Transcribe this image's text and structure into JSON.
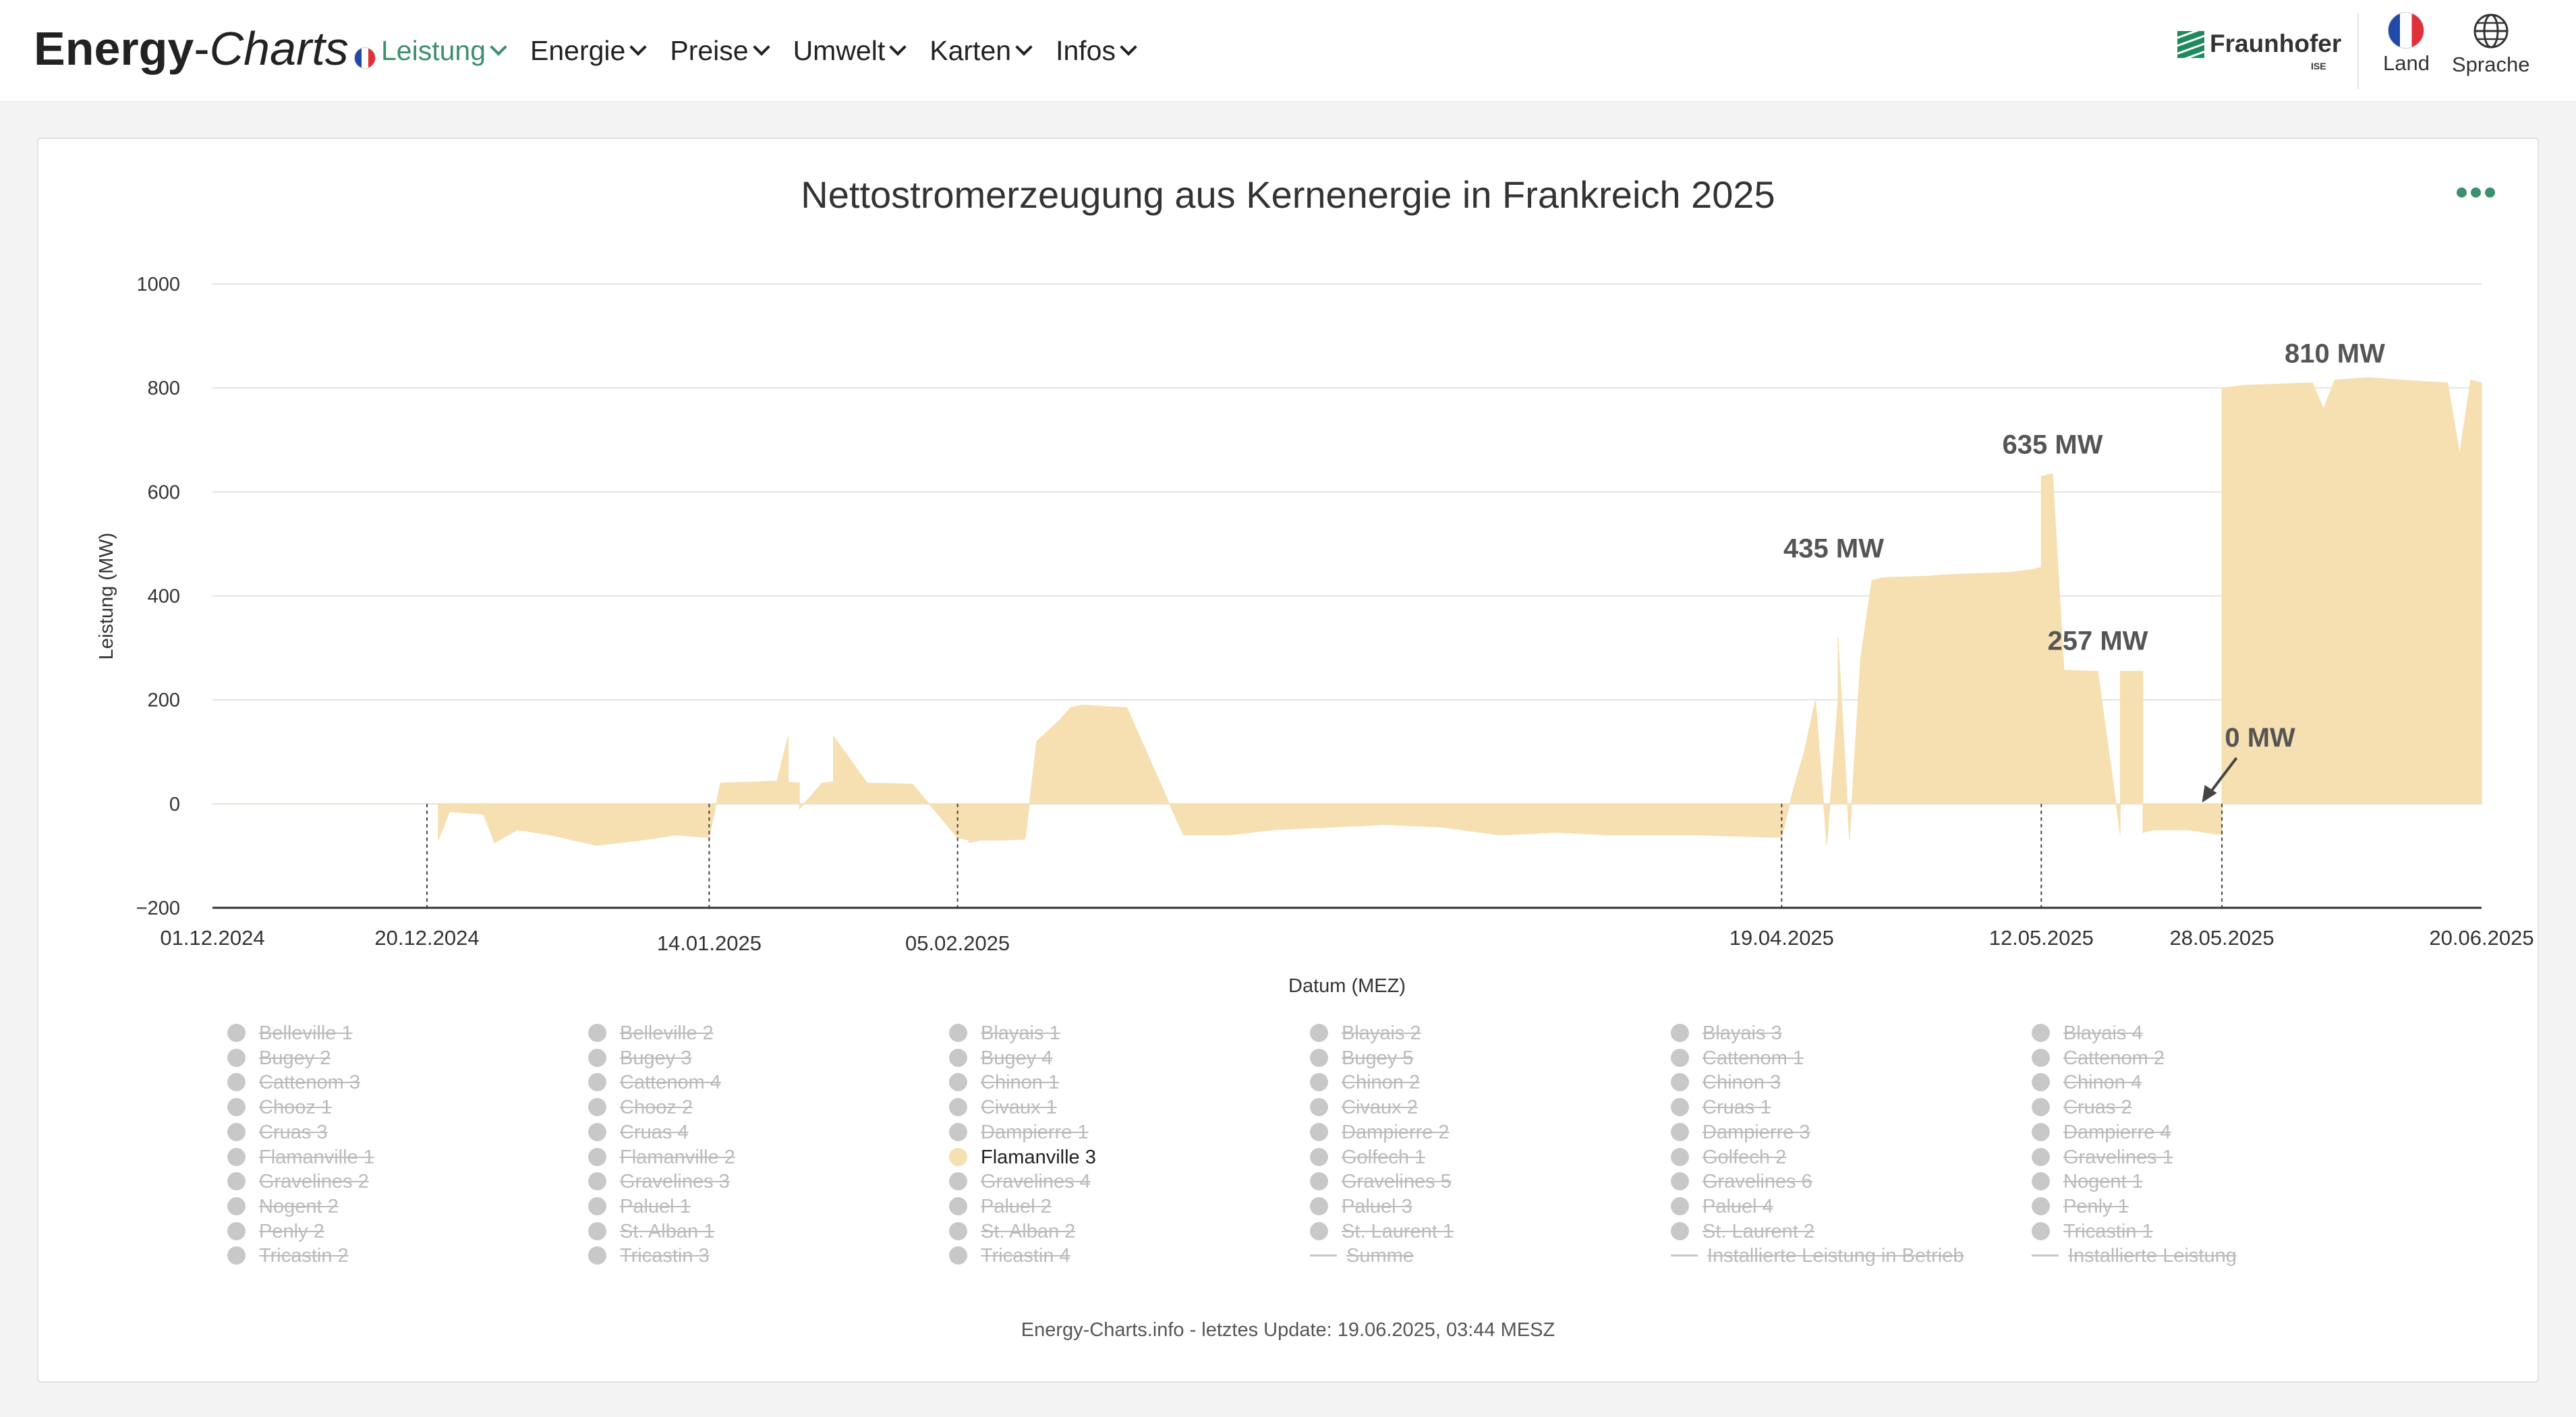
{
  "header": {
    "logo_part1": "Energy",
    "logo_dash": "-",
    "logo_part2": "Charts",
    "nav": [
      {
        "label": "Leistung",
        "active": true
      },
      {
        "label": "Energie",
        "active": false
      },
      {
        "label": "Preise",
        "active": false
      },
      {
        "label": "Umwelt",
        "active": false
      },
      {
        "label": "Karten",
        "active": false
      },
      {
        "label": "Infos",
        "active": false
      }
    ],
    "fraunhofer": "Fraunhofer",
    "fraunhofer_sub": "ISE",
    "land_label": "Land",
    "sprache_label": "Sprache",
    "accent_color": "#3d8f6e"
  },
  "chart_data": {
    "type": "area",
    "title": "Nettostromerzeugung aus Kernenergie in Frankreich 2025",
    "ylabel": "Leistung (MW)",
    "xlabel": "Datum (MEZ)",
    "ylim": [
      -200,
      1000
    ],
    "yticks": [
      -200,
      0,
      200,
      400,
      600,
      800,
      1000
    ],
    "xlim": [
      "2024-12-01",
      "2025-06-20"
    ],
    "x_tick_labels": [
      "01.12.2024",
      "20.12.2024",
      "14.01.2025",
      "05.02.2025",
      "19.04.2025",
      "12.05.2025",
      "28.05.2025",
      "20.06.2025"
    ],
    "marker_dates": [
      "2024-12-20",
      "2025-01-14",
      "2025-02-05",
      "2025-04-19",
      "2025-05-12",
      "2025-05-28"
    ],
    "grid": true,
    "series": [
      {
        "name": "Flamanville 3",
        "color": "#f6dfb0",
        "x": [
          "2024-12-01",
          "2024-12-21",
          "2024-12-21",
          "2024-12-22",
          "2024-12-25",
          "2024-12-26",
          "2024-12-28",
          "2024-12-31",
          "2025-01-04",
          "2025-01-08",
          "2025-01-11",
          "2025-01-14",
          "2025-01-15",
          "2025-01-18",
          "2025-01-20",
          "2025-01-21",
          "2025-01-21",
          "2025-01-22",
          "2025-01-22",
          "2025-01-24",
          "2025-01-25",
          "2025-01-25",
          "2025-01-28",
          "2025-02-01",
          "2025-02-05",
          "2025-02-06",
          "2025-02-06",
          "2025-02-07",
          "2025-02-08",
          "2025-02-09",
          "2025-02-11",
          "2025-02-12",
          "2025-02-14",
          "2025-02-15",
          "2025-02-16",
          "2025-02-20",
          "2025-02-25",
          "2025-03-01",
          "2025-03-05",
          "2025-03-10",
          "2025-03-15",
          "2025-03-20",
          "2025-03-25",
          "2025-03-30",
          "2025-04-04",
          "2025-04-08",
          "2025-04-12",
          "2025-04-19",
          "2025-04-20",
          "2025-04-21",
          "2025-04-22",
          "2025-04-23",
          "2025-04-24",
          "2025-04-24",
          "2025-04-25",
          "2025-04-26",
          "2025-04-27",
          "2025-04-28",
          "2025-05-02",
          "2025-05-03",
          "2025-05-05",
          "2025-05-09",
          "2025-05-11",
          "2025-05-12",
          "2025-05-12",
          "2025-05-13",
          "2025-05-14",
          "2025-05-14",
          "2025-05-17",
          "2025-05-19",
          "2025-05-19",
          "2025-05-21",
          "2025-05-21",
          "2025-05-22",
          "2025-05-25",
          "2025-05-28",
          "2025-05-28",
          "2025-05-30",
          "2025-06-05",
          "2025-06-06",
          "2025-06-07",
          "2025-06-10",
          "2025-06-13",
          "2025-06-15",
          "2025-06-17",
          "2025-06-18",
          "2025-06-18",
          "2025-06-19",
          "2025-06-19",
          "2025-06-20"
        ],
        "y": [
          0,
          0,
          -70,
          -15,
          -20,
          -75,
          -50,
          -60,
          -80,
          -70,
          -60,
          -65,
          40,
          42,
          44,
          130,
          42,
          40,
          -10,
          40,
          42,
          130,
          40,
          38,
          -65,
          -70,
          -75,
          -70,
          -70,
          -70,
          -68,
          120,
          160,
          185,
          190,
          185,
          -60,
          -60,
          -50,
          -45,
          -40,
          -45,
          -60,
          -55,
          -60,
          -60,
          -60,
          -65,
          25,
          100,
          200,
          -80,
          200,
          320,
          -70,
          280,
          430,
          435,
          438,
          440,
          442,
          445,
          450,
          455,
          630,
          635,
          260,
          257,
          255,
          -60,
          255,
          255,
          -55,
          -50,
          -50,
          -60,
          800,
          805,
          810,
          760,
          815,
          820,
          815,
          812,
          810,
          680,
          665,
          810,
          815,
          810
        ]
      }
    ],
    "annotations": [
      {
        "text": "435 MW",
        "x": "2025-04-26",
        "y": 435
      },
      {
        "text": "635 MW",
        "x": "2025-05-13",
        "y": 635
      },
      {
        "text": "257 MW",
        "x": "2025-05-17",
        "y": 257
      },
      {
        "text": "0 MW",
        "x": "2025-05-26",
        "y": 0
      },
      {
        "text": "810 MW",
        "x": "2025-06-07",
        "y": 810
      }
    ]
  },
  "legend": {
    "columns": [
      [
        "Belleville 1",
        "Bugey 2",
        "Cattenom 3",
        "Chooz 1",
        "Cruas 3",
        "Flamanville 1",
        "Gravelines 2",
        "Nogent 2",
        "Penly 2",
        "Tricastin 2"
      ],
      [
        "Belleville 2",
        "Bugey 3",
        "Cattenom 4",
        "Chooz 2",
        "Cruas 4",
        "Flamanville 2",
        "Gravelines 3",
        "Paluel 1",
        "St. Alban 1",
        "Tricastin 3"
      ],
      [
        "Blayais 1",
        "Bugey 4",
        "Chinon 1",
        "Civaux 1",
        "Dampierre 1",
        "Flamanville 3",
        "Gravelines 4",
        "Paluel 2",
        "St. Alban 2",
        "Tricastin 4"
      ],
      [
        "Blayais 2",
        "Bugey 5",
        "Chinon 2",
        "Civaux 2",
        "Dampierre 2",
        "Golfech 1",
        "Gravelines 5",
        "Paluel 3",
        "St. Laurent 1",
        "Summe"
      ],
      [
        "Blayais 3",
        "Cattenom 1",
        "Chinon 3",
        "Cruas 1",
        "Dampierre 3",
        "Golfech 2",
        "Gravelines 6",
        "Paluel 4",
        "St. Laurent 2",
        "Installierte Leistung in Betrieb"
      ],
      [
        "Blayais 4",
        "Cattenom 2",
        "Chinon 4",
        "Cruas 2",
        "Dampierre 4",
        "Gravelines 1",
        "Nogent 1",
        "Penly 1",
        "Tricastin 1",
        "Installierte Leistung"
      ]
    ],
    "active": [
      "Flamanville 3"
    ],
    "line_items": [
      "Summe",
      "Installierte Leistung in Betrieb",
      "Installierte Leistung"
    ]
  },
  "footer": "Energy-Charts.info - letztes Update: 19.06.2025, 03:44 MESZ"
}
